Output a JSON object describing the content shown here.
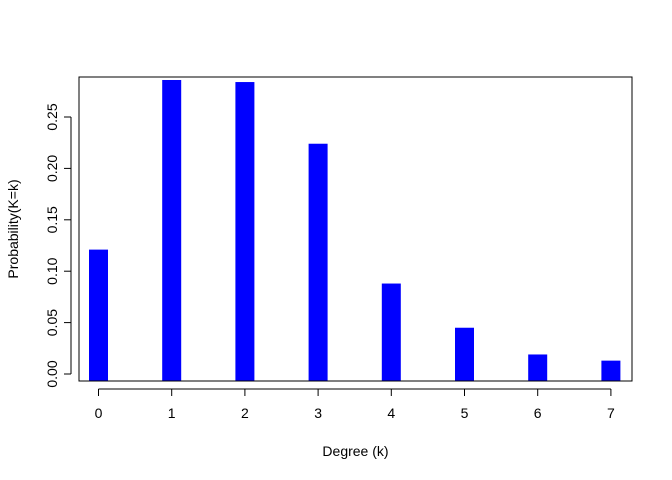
{
  "chart_data": {
    "type": "bar",
    "title": "",
    "xlabel": "Degree (k)",
    "ylabel": "Probability(K=k)",
    "categories": [
      "0",
      "1",
      "2",
      "3",
      "4",
      "5",
      "6",
      "7"
    ],
    "values": [
      0.121,
      0.286,
      0.284,
      0.224,
      0.088,
      0.045,
      0.019,
      0.013
    ],
    "yticks": [
      "0.00",
      "0.05",
      "0.10",
      "0.15",
      "0.20",
      "0.25"
    ],
    "ylim": [
      0,
      0.295
    ],
    "bar_color": "#0000ff",
    "grid": false,
    "legend": "none"
  }
}
